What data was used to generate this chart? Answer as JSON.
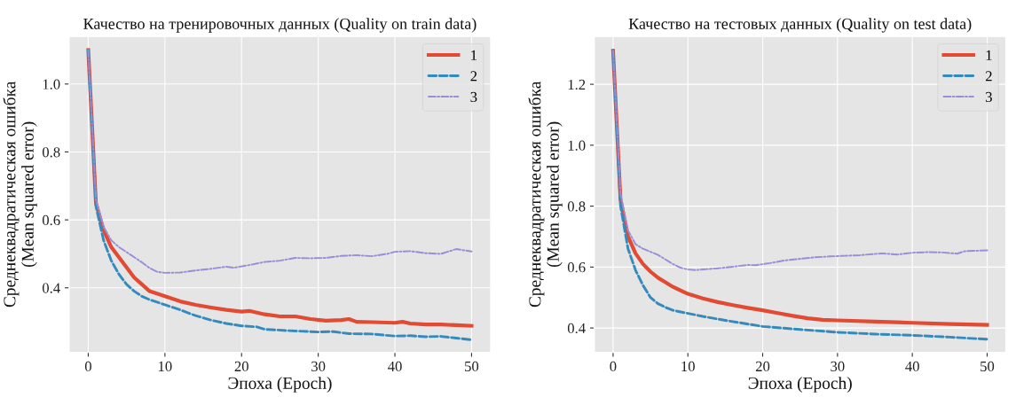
{
  "chart_data": [
    {
      "type": "line",
      "title": "Качество на тренировочных данных (Quality on train data)",
      "xlabel": "Эпоха (Epoch)",
      "ylabel": "Среднеквадратическая ошибка\n(Mean squared error)",
      "xlim": [
        -2.5,
        52.5
      ],
      "ylim": [
        0.21,
        1.14
      ],
      "xticks": [
        0,
        10,
        20,
        30,
        40,
        50
      ],
      "yticks": [
        {
          "value": 0.4,
          "label": "0.4"
        },
        {
          "value": 0.6,
          "label": "0.6"
        },
        {
          "value": 0.8,
          "label": "0.8"
        },
        {
          "value": 1.0,
          "label": "1.0"
        }
      ],
      "grid": true,
      "legend": "top right",
      "series": [
        {
          "name": "1",
          "color": "#e24a33",
          "line_style": "solid",
          "x": [
            0,
            1,
            2,
            3,
            4,
            5,
            6,
            7,
            8,
            10,
            12,
            14,
            16,
            18,
            20,
            21,
            23,
            25,
            27,
            29,
            31,
            33,
            34,
            35,
            37,
            40,
            41,
            42,
            44,
            46,
            48,
            50
          ],
          "values": [
            1.1,
            0.65,
            0.57,
            0.52,
            0.49,
            0.46,
            0.43,
            0.41,
            0.39,
            0.375,
            0.36,
            0.35,
            0.342,
            0.335,
            0.33,
            0.332,
            0.322,
            0.316,
            0.316,
            0.308,
            0.303,
            0.305,
            0.308,
            0.3,
            0.299,
            0.297,
            0.3,
            0.295,
            0.292,
            0.292,
            0.29,
            0.288
          ]
        },
        {
          "name": "2",
          "color": "#348abd",
          "line_style": "dashed",
          "x": [
            0,
            1,
            2,
            3,
            4,
            5,
            6,
            7,
            8,
            10,
            12,
            14,
            16,
            18,
            20,
            22,
            23,
            26,
            30,
            32,
            34,
            37,
            40,
            42,
            44,
            46,
            48,
            50
          ],
          "values": [
            1.1,
            0.64,
            0.54,
            0.48,
            0.44,
            0.41,
            0.39,
            0.375,
            0.365,
            0.35,
            0.335,
            0.318,
            0.305,
            0.295,
            0.288,
            0.285,
            0.278,
            0.274,
            0.27,
            0.271,
            0.265,
            0.264,
            0.258,
            0.259,
            0.256,
            0.257,
            0.252,
            0.247
          ]
        },
        {
          "name": "3",
          "color": "#988ed5",
          "line_style": "dashdot",
          "x": [
            0,
            1,
            2,
            3,
            4,
            5,
            6,
            7,
            8,
            9,
            10,
            12,
            14,
            16,
            18,
            19,
            21,
            23,
            25,
            27,
            29,
            31,
            33,
            35,
            37,
            39,
            40,
            42,
            44,
            46,
            48,
            50
          ],
          "values": [
            1.1,
            0.66,
            0.58,
            0.54,
            0.52,
            0.505,
            0.49,
            0.475,
            0.458,
            0.447,
            0.444,
            0.445,
            0.451,
            0.456,
            0.462,
            0.459,
            0.467,
            0.476,
            0.48,
            0.488,
            0.487,
            0.488,
            0.494,
            0.496,
            0.493,
            0.5,
            0.506,
            0.508,
            0.502,
            0.5,
            0.514,
            0.507
          ]
        }
      ]
    },
    {
      "type": "line",
      "title": "Качество на тестовых данных (Quality on test data)",
      "xlabel": "Эпоха (Epoch)",
      "ylabel": "Среднеквадратическая ошибка\n(Mean squared error)",
      "xlim": [
        -2.5,
        52.5
      ],
      "ylim": [
        0.32,
        1.357
      ],
      "xticks": [
        0,
        10,
        20,
        30,
        40,
        50
      ],
      "yticks": [
        {
          "value": 0.4,
          "label": "0.4"
        },
        {
          "value": 0.6,
          "label": "0.6"
        },
        {
          "value": 0.8,
          "label": "0.8"
        },
        {
          "value": 1.0,
          "label": "1.0"
        },
        {
          "value": 1.2,
          "label": "1.2"
        }
      ],
      "grid": true,
      "legend": "top right",
      "series": [
        {
          "name": "1",
          "color": "#e24a33",
          "line_style": "solid",
          "x": [
            0,
            1,
            2,
            3,
            4,
            5,
            6,
            7,
            8,
            10,
            12,
            14,
            16,
            18,
            20,
            22,
            24,
            26,
            28,
            30,
            35,
            40,
            45,
            50
          ],
          "values": [
            1.31,
            0.82,
            0.7,
            0.645,
            0.61,
            0.585,
            0.565,
            0.55,
            0.535,
            0.512,
            0.497,
            0.485,
            0.475,
            0.466,
            0.458,
            0.449,
            0.44,
            0.432,
            0.427,
            0.425,
            0.421,
            0.417,
            0.413,
            0.41
          ]
        },
        {
          "name": "2",
          "color": "#348abd",
          "line_style": "dashed",
          "x": [
            0,
            1,
            2,
            3,
            4,
            5,
            6,
            7,
            8,
            10,
            12,
            15,
            20,
            25,
            30,
            35,
            40,
            45,
            50
          ],
          "values": [
            1.31,
            0.8,
            0.66,
            0.59,
            0.54,
            0.5,
            0.48,
            0.468,
            0.458,
            0.448,
            0.438,
            0.425,
            0.405,
            0.395,
            0.386,
            0.38,
            0.376,
            0.37,
            0.363
          ]
        },
        {
          "name": "3",
          "color": "#988ed5",
          "line_style": "dashdot",
          "x": [
            0,
            1,
            2,
            3,
            4,
            5,
            6,
            7,
            8,
            9,
            10,
            11,
            12,
            14,
            16,
            18,
            19,
            21,
            23,
            25,
            27,
            29,
            31,
            33,
            36,
            38,
            40,
            42,
            44,
            46,
            47,
            50
          ],
          "values": [
            1.31,
            0.84,
            0.72,
            0.675,
            0.66,
            0.65,
            0.64,
            0.625,
            0.61,
            0.598,
            0.592,
            0.59,
            0.592,
            0.596,
            0.601,
            0.607,
            0.606,
            0.613,
            0.622,
            0.627,
            0.632,
            0.635,
            0.637,
            0.639,
            0.645,
            0.641,
            0.647,
            0.649,
            0.648,
            0.644,
            0.652,
            0.655
          ]
        }
      ]
    }
  ]
}
